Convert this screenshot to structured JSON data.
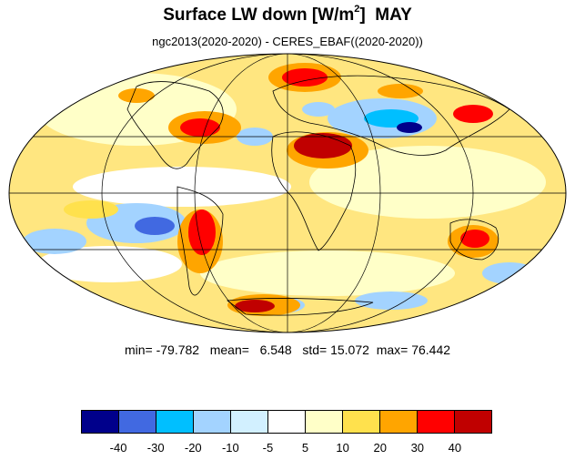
{
  "title": {
    "main": "Surface LW down [W/m",
    "sup": "2",
    "close": "]",
    "month": "MAY"
  },
  "subtitle": "ngc2013(2020-2020) - CERES_EBAF((2020-2020))",
  "stats": {
    "min_label": "min=",
    "min": "-79.782",
    "mean_label": "mean=",
    "mean": "6.548",
    "std_label": "std=",
    "std": "15.072",
    "max_label": "max=",
    "max": "76.442"
  },
  "colorbar": {
    "colors": [
      "#00008b",
      "#4169e1",
      "#00bfff",
      "#a3d3ff",
      "#d2f0ff",
      "#ffffff",
      "#ffffc8",
      "#ffe14d",
      "#ffa500",
      "#ff0000",
      "#c00000"
    ],
    "levels": [
      "-40",
      "-30",
      "-20",
      "-10",
      "-5",
      "5",
      "10",
      "20",
      "30",
      "40"
    ]
  },
  "map": {
    "projection": "Mollweide",
    "ocean_background": "#ffe6a0",
    "graticule_color": "#000000"
  }
}
